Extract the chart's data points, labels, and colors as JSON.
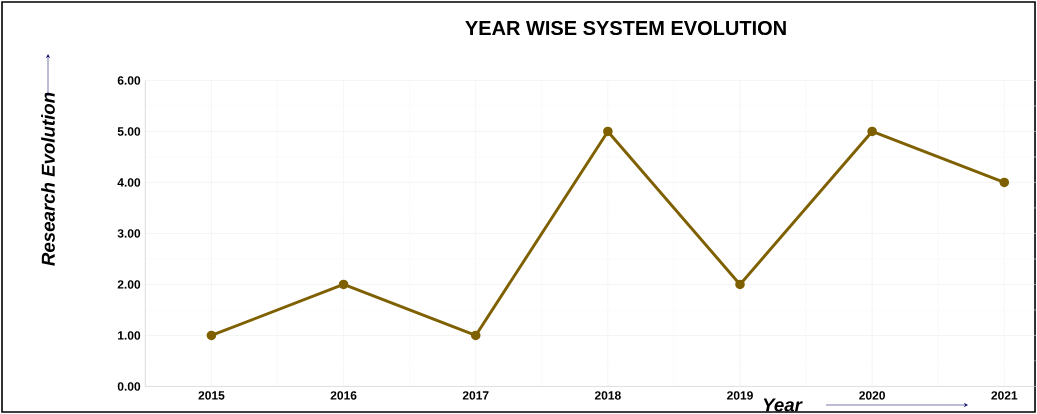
{
  "chart_data": {
    "type": "line",
    "title": "YEAR WISE SYSTEM EVOLUTION",
    "xlabel": "Year",
    "ylabel": "Research Evolution",
    "categories": [
      "2015",
      "2016",
      "2017",
      "2018",
      "2019",
      "2020",
      "2021"
    ],
    "series": [
      {
        "color": "#7f6000",
        "values": [
          1,
          2,
          1,
          5,
          2,
          5,
          4
        ]
      }
    ],
    "ylim": [
      0,
      6
    ],
    "yticks": [
      {
        "value": 0,
        "label": "0.00"
      },
      {
        "value": 1,
        "label": "1.00"
      },
      {
        "value": 2,
        "label": "2.00"
      },
      {
        "value": 3,
        "label": "3.00"
      },
      {
        "value": 4,
        "label": "4.00"
      },
      {
        "value": 5,
        "label": "5.00"
      },
      {
        "value": 6,
        "label": "6.00"
      }
    ],
    "grid": true,
    "marker": "circle",
    "line_style": "solid"
  }
}
